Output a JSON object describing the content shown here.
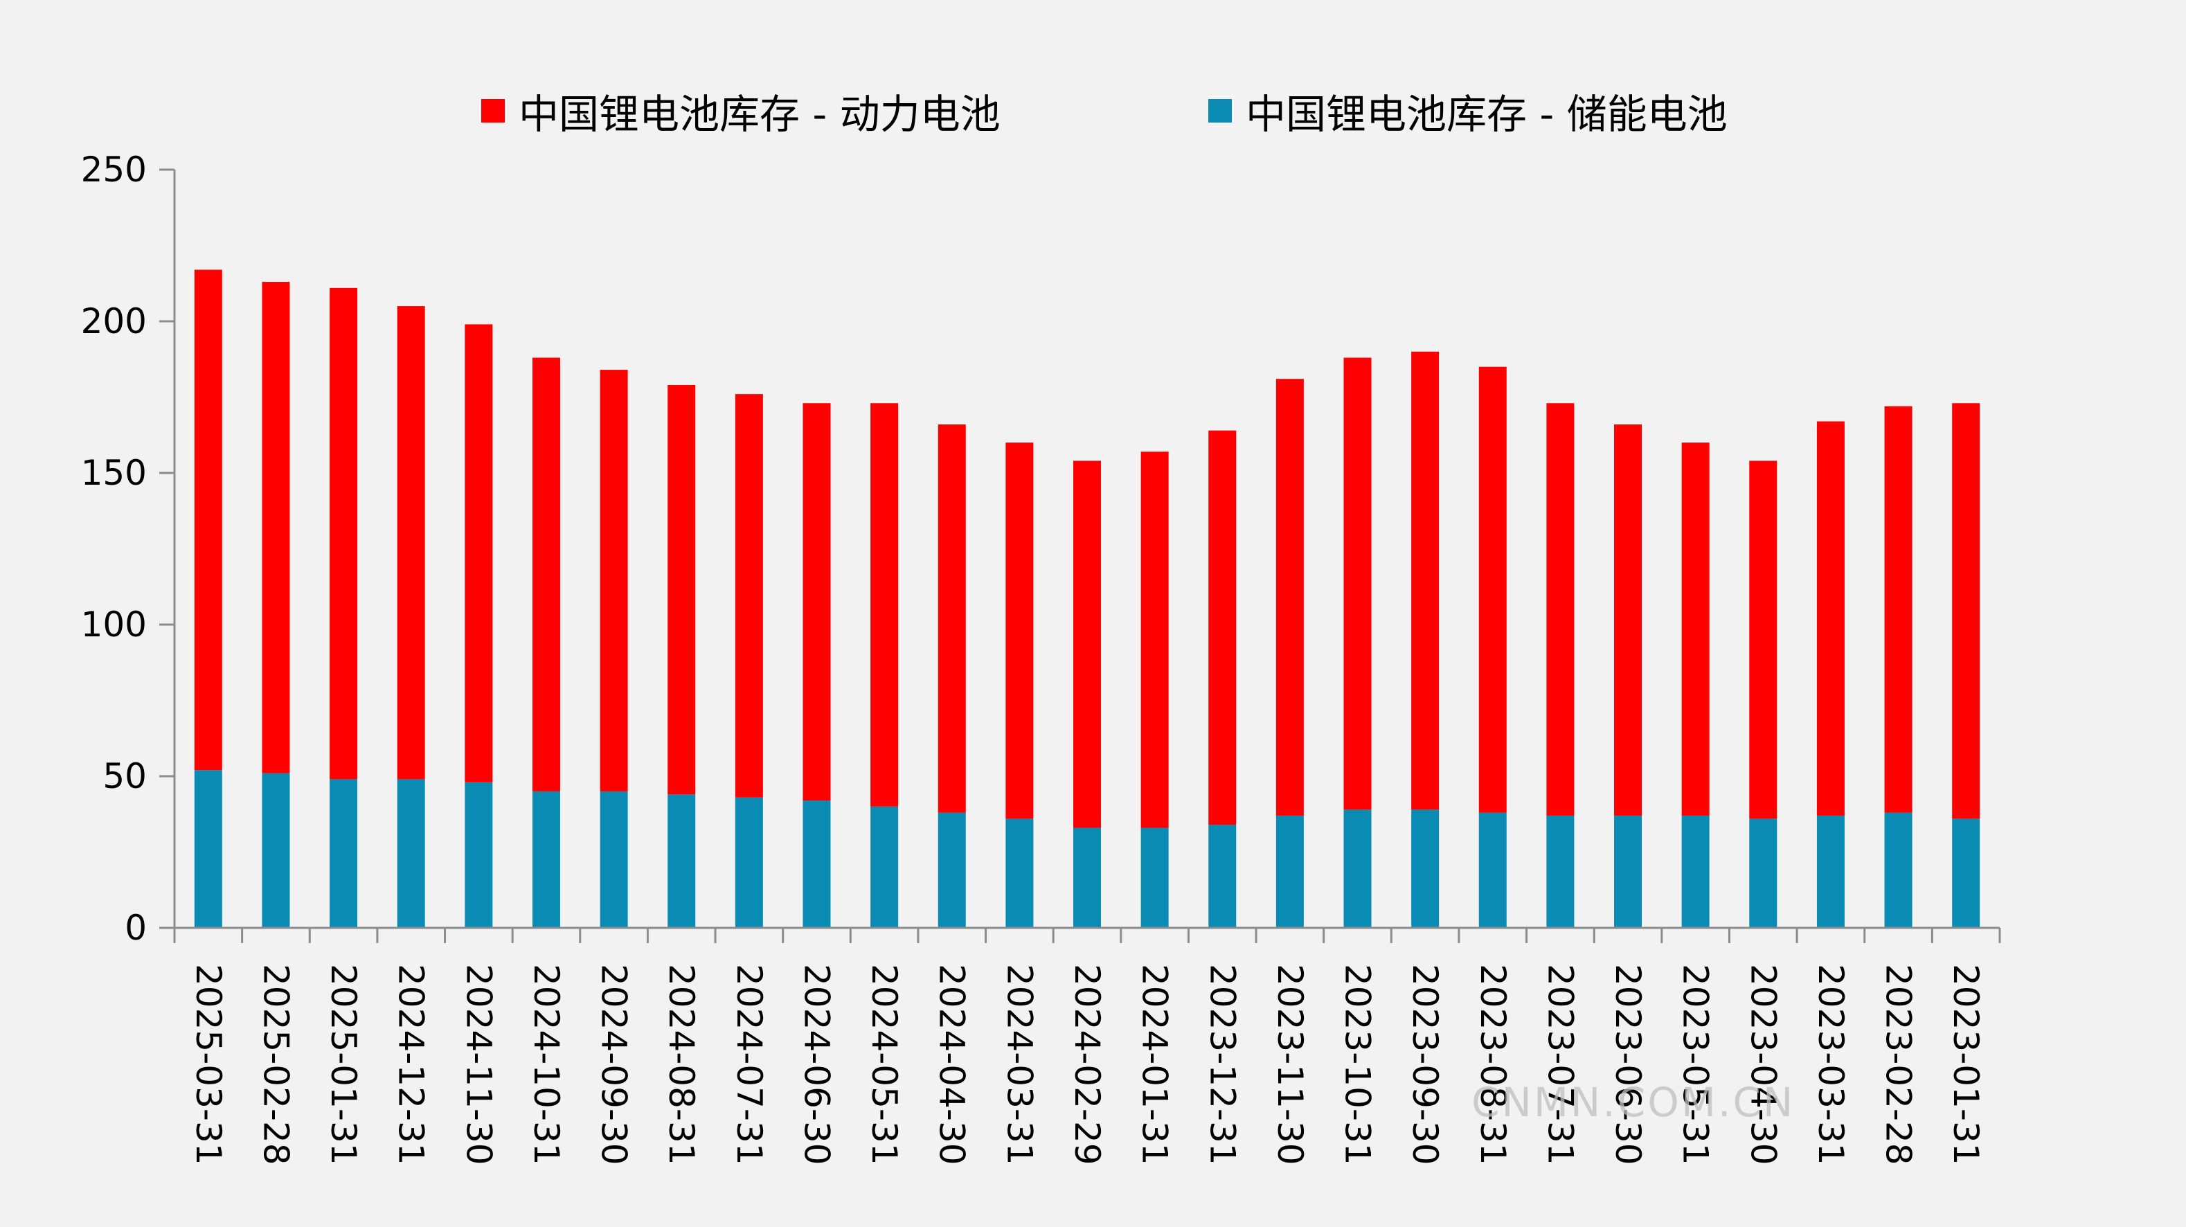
{
  "chart_data": {
    "type": "bar",
    "stacked": true,
    "categories": [
      "2025-03-31",
      "2025-02-28",
      "2025-01-31",
      "2024-12-31",
      "2024-11-30",
      "2024-10-31",
      "2024-09-30",
      "2024-08-31",
      "2024-07-31",
      "2024-06-30",
      "2024-05-31",
      "2024-04-30",
      "2024-03-31",
      "2024-02-29",
      "2024-01-31",
      "2023-12-31",
      "2023-11-30",
      "2023-10-31",
      "2023-09-30",
      "2023-08-31",
      "2023-07-31",
      "2023-06-30",
      "2023-05-31",
      "2023-04-30",
      "2023-03-31",
      "2023-02-28",
      "2023-01-31"
    ],
    "series": [
      {
        "name": "中国锂电池库存 - 储能电池",
        "color": "#0a8bb3",
        "values": [
          52,
          51,
          49,
          49,
          48,
          45,
          45,
          44,
          43,
          42,
          40,
          38,
          36,
          33,
          33,
          34,
          37,
          39,
          39,
          38,
          37,
          37,
          37,
          36,
          37,
          38,
          36
        ]
      },
      {
        "name": "中国锂电池库存 - 动力电池",
        "color": "#ff0000",
        "values": [
          165,
          162,
          162,
          156,
          151,
          143,
          139,
          135,
          133,
          131,
          133,
          128,
          124,
          121,
          124,
          130,
          144,
          149,
          151,
          147,
          136,
          129,
          123,
          118,
          130,
          134,
          137
        ]
      }
    ],
    "legend_order": [
      "中国锂电池库存 - 动力电池",
      "中国锂电池库存 - 储能电池"
    ],
    "legend_position": "top-center",
    "ylim": [
      0,
      250
    ],
    "yticks": [
      "0",
      "50",
      "100",
      "150",
      "200",
      "250"
    ],
    "xlabel_rotation": "vertical",
    "grid": false,
    "title": "",
    "xlabel": "",
    "ylabel": ""
  },
  "watermark": "CNMN.COM.CN"
}
